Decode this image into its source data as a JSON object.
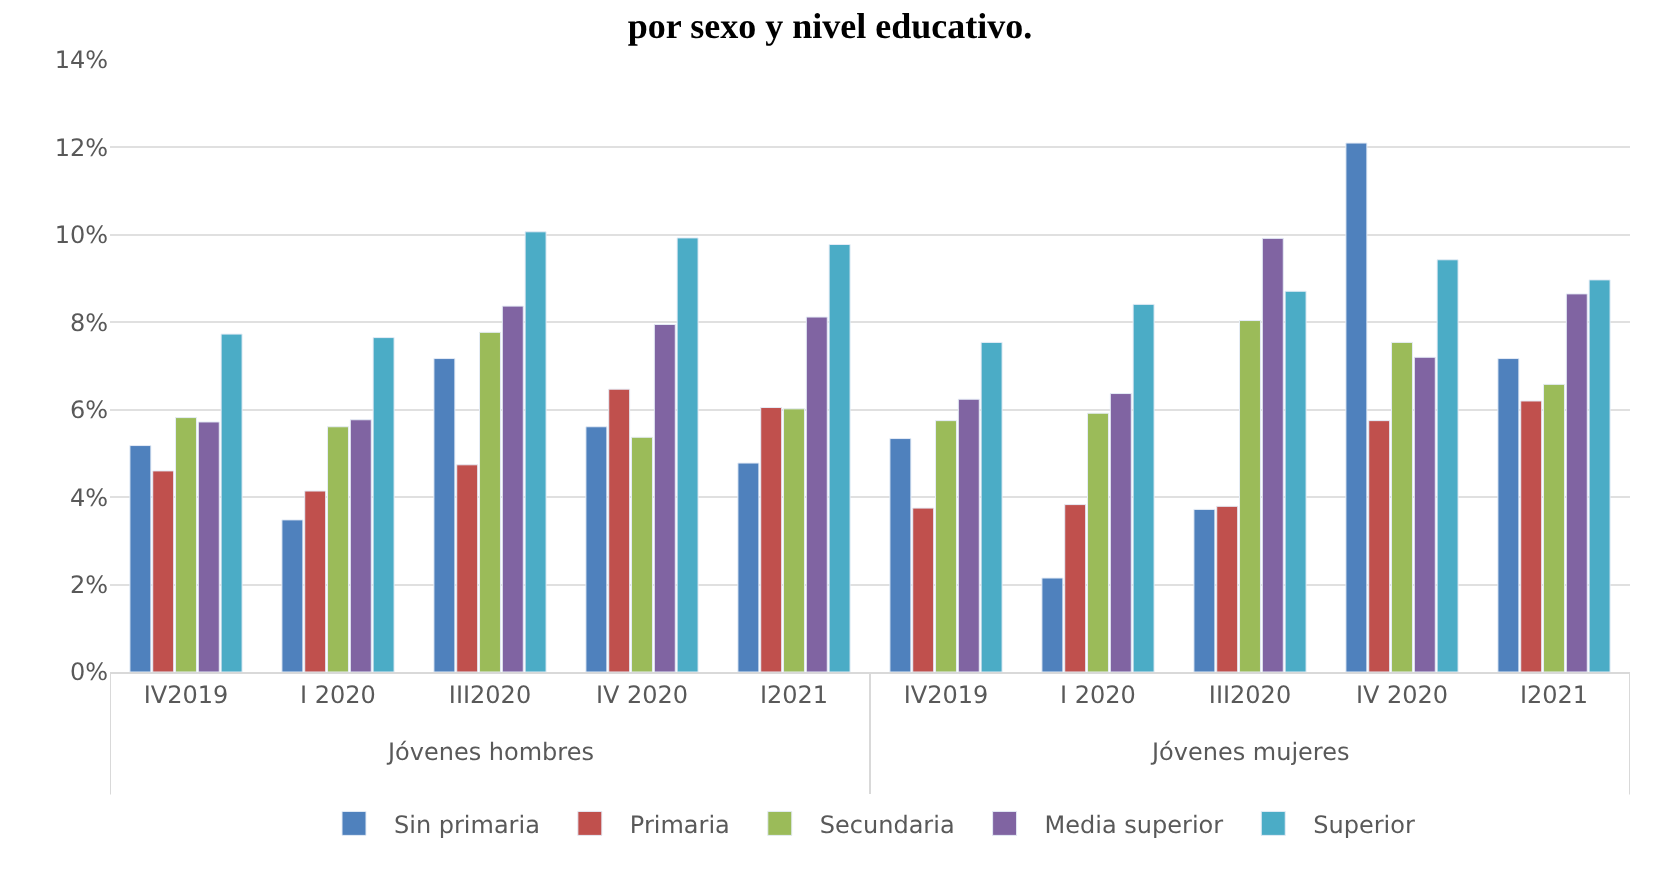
{
  "chart_data": {
    "type": "bar",
    "title": "por sexo y nivel educativo.",
    "categories": [
      "IV2019",
      "I 2020",
      "III2020",
      "IV 2020",
      "I2021",
      "IV2019",
      "I 2020",
      "III2020",
      "IV 2020",
      "I2021"
    ],
    "series": [
      {
        "name": "Sin primaria",
        "color": "#4f81bd",
        "values": [
          5.18,
          3.48,
          7.17,
          5.61,
          4.78,
          5.34,
          2.15,
          3.72,
          12.1,
          7.17
        ]
      },
      {
        "name": "Primaria",
        "color": "#c0504d",
        "values": [
          4.6,
          4.14,
          4.74,
          6.47,
          6.05,
          3.75,
          3.83,
          3.79,
          5.75,
          6.2
        ]
      },
      {
        "name": "Secundaria",
        "color": "#9bbb59",
        "values": [
          5.82,
          5.61,
          7.77,
          5.37,
          6.02,
          5.75,
          5.92,
          8.04,
          7.54,
          6.58
        ]
      },
      {
        "name": "Media superior",
        "color": "#8064a2",
        "values": [
          5.72,
          5.77,
          8.37,
          7.95,
          8.12,
          6.24,
          6.37,
          9.92,
          7.2,
          8.65
        ]
      },
      {
        "name": "Superior",
        "color": "#4bacc6",
        "values": [
          7.73,
          7.65,
          10.07,
          9.93,
          9.78,
          7.54,
          8.41,
          8.71,
          9.43,
          8.97
        ]
      }
    ],
    "annotations": [
      "Jóvenes hombres",
      "Jóvenes mujeres"
    ],
    "ylim": [
      0,
      14
    ],
    "yticks": [
      {
        "value": 0,
        "label": "0%"
      },
      {
        "value": 2,
        "label": "2%"
      },
      {
        "value": 4,
        "label": "4%"
      },
      {
        "value": 6,
        "label": "6%"
      },
      {
        "value": 8,
        "label": "8%"
      },
      {
        "value": 10,
        "label": "10%"
      },
      {
        "value": 12,
        "label": "12%"
      },
      {
        "value": 14,
        "label": "14%"
      }
    ],
    "grid": "y",
    "legend": "bottom"
  }
}
